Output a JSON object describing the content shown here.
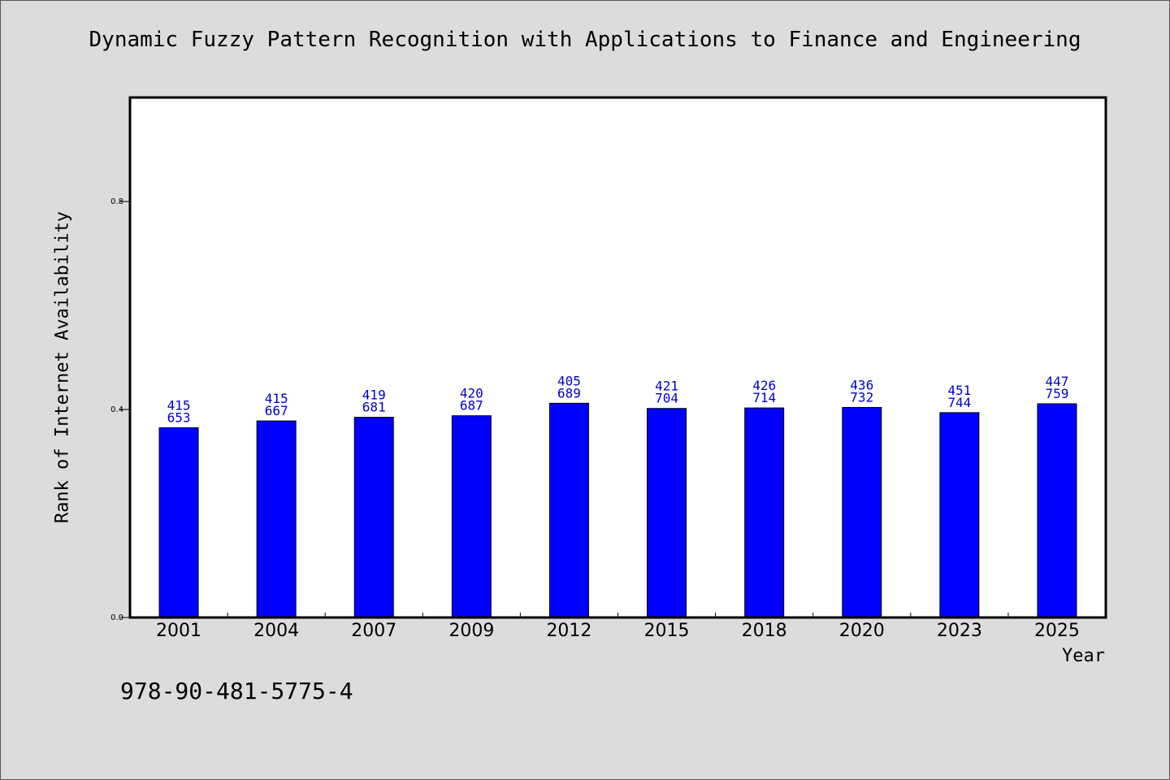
{
  "chart_data": {
    "type": "bar",
    "title": "Dynamic Fuzzy Pattern Recognition with Applications to Finance and Engineering",
    "xlabel": "Year",
    "ylabel": "Rank of Internet Availability",
    "categories": [
      "2001",
      "2004",
      "2007",
      "2009",
      "2012",
      "2015",
      "2018",
      "2020",
      "2023",
      "2025"
    ],
    "values": [
      0.365,
      0.378,
      0.385,
      0.388,
      0.412,
      0.402,
      0.403,
      0.404,
      0.394,
      0.411
    ],
    "label_top": [
      "415",
      "415",
      "419",
      "420",
      "405",
      "421",
      "426",
      "436",
      "451",
      "447"
    ],
    "label_bottom": [
      "653",
      "667",
      "681",
      "687",
      "689",
      "704",
      "714",
      "732",
      "744",
      "759"
    ],
    "yticks": [
      "0.0",
      "0.4",
      "0.8"
    ],
    "ylim": [
      0,
      1.0
    ],
    "grid": false,
    "bar_color": "#0000ff",
    "label_color": "#0000cc"
  },
  "footer": {
    "isbn": "978-90-481-5775-4"
  }
}
